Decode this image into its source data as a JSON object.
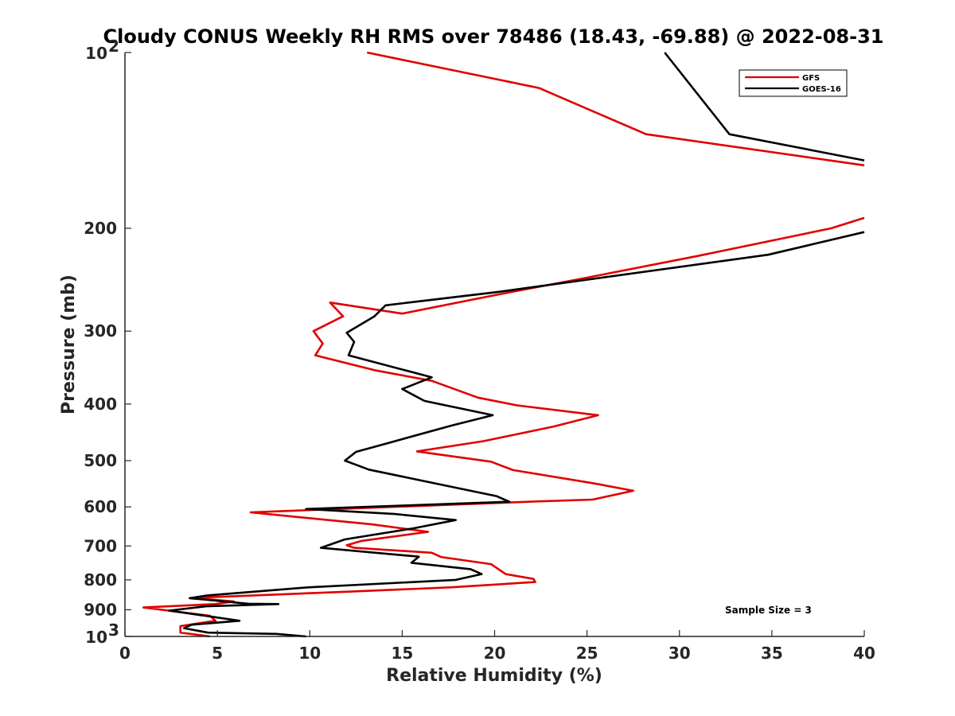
{
  "chart_data": {
    "type": "line",
    "title": "Cloudy CONUS Weekly RH RMS over 78486 (18.43, -69.88) @ 2022-08-31",
    "xlabel": "Relative Humidity (%)",
    "ylabel": "Pressure (mb)",
    "xlim": [
      0,
      40
    ],
    "ylim": [
      100,
      1000
    ],
    "y_scale": "log",
    "y_reversed": true,
    "grid": false,
    "legend_position": "top-right",
    "annotation": "Sample Size = 3",
    "x_ticks": [
      0,
      5,
      10,
      15,
      20,
      25,
      30,
      35,
      40
    ],
    "y_ticks": [
      {
        "value": 100,
        "base": "10",
        "exp": "2"
      },
      {
        "value": 200,
        "label": "200"
      },
      {
        "value": 300,
        "label": "300"
      },
      {
        "value": 400,
        "label": "400"
      },
      {
        "value": 500,
        "label": "500"
      },
      {
        "value": 600,
        "label": "600"
      },
      {
        "value": 700,
        "label": "700"
      },
      {
        "value": 800,
        "label": "800"
      },
      {
        "value": 900,
        "label": "900"
      },
      {
        "value": 1000,
        "base": "10",
        "exp": "3"
      }
    ],
    "series": [
      {
        "name": "GFS",
        "color": "#e00000",
        "segments": [
          [
            [
              13.1,
              100
            ],
            [
              22.4,
              115
            ],
            [
              28.2,
              138
            ],
            [
              40,
              156
            ]
          ],
          [
            [
              40,
              192
            ],
            [
              38.2,
              200
            ],
            [
              31,
              223
            ],
            [
              25,
              243
            ],
            [
              20.1,
              260
            ],
            [
              15,
              280
            ],
            [
              11.1,
              268
            ],
            [
              11.8,
              283
            ],
            [
              10.2,
              300
            ],
            [
              10.7,
              315
            ],
            [
              10.3,
              330
            ],
            [
              13.5,
              350
            ],
            [
              16.6,
              365
            ],
            [
              19.1,
              390
            ],
            [
              21.2,
              402
            ],
            [
              25.6,
              418
            ],
            [
              23.2,
              437
            ],
            [
              19.4,
              463
            ],
            [
              15.8,
              482
            ],
            [
              19.8,
              502
            ],
            [
              21,
              519
            ],
            [
              25.4,
              547
            ],
            [
              27.5,
              563
            ],
            [
              25.3,
              583
            ],
            [
              22.4,
              587
            ],
            [
              6.8,
              613
            ],
            [
              13.4,
              643
            ],
            [
              16.4,
              662
            ],
            [
              12.8,
              686
            ],
            [
              12,
              698
            ],
            [
              12.4,
              705
            ],
            [
              16.6,
              719
            ],
            [
              17.1,
              731
            ],
            [
              19.8,
              752
            ],
            [
              20.6,
              782
            ],
            [
              22.1,
              797
            ],
            [
              22.2,
              807
            ],
            [
              17.6,
              824
            ],
            [
              12.1,
              838
            ],
            [
              3.6,
              859
            ],
            [
              5.9,
              871
            ],
            [
              4.9,
              880
            ],
            [
              1,
              892
            ],
            [
              4.6,
              922
            ],
            [
              4.9,
              940
            ],
            [
              3,
              960
            ],
            [
              3,
              985
            ],
            [
              4.6,
              1000
            ]
          ]
        ]
      },
      {
        "name": "GOES-16",
        "color": "#000000",
        "segments": [
          [
            [
              29.2,
              100
            ],
            [
              32.7,
              138
            ],
            [
              40,
              153
            ]
          ],
          [
            [
              40,
              203
            ],
            [
              34.8,
              222
            ],
            [
              20.2,
              257
            ],
            [
              14.1,
              271
            ],
            [
              13.5,
              283
            ],
            [
              12,
              302
            ],
            [
              12.4,
              313
            ],
            [
              12.1,
              330
            ],
            [
              16.6,
              360
            ],
            [
              15,
              377
            ],
            [
              16.2,
              395
            ],
            [
              19.9,
              418
            ],
            [
              17.7,
              435
            ],
            [
              14.5,
              464
            ],
            [
              12.5,
              483
            ],
            [
              11.9,
              500
            ],
            [
              13.2,
              518
            ],
            [
              20.1,
              575
            ],
            [
              20.8,
              588
            ],
            [
              9.8,
              605
            ],
            [
              14.6,
              617
            ],
            [
              17.9,
              632
            ],
            [
              15.6,
              653
            ],
            [
              11.9,
              682
            ],
            [
              10.6,
              705
            ],
            [
              15.9,
              730
            ],
            [
              15.5,
              748
            ],
            [
              18.7,
              767
            ],
            [
              19.3,
              782
            ],
            [
              17.9,
              800
            ],
            [
              9.9,
              824
            ],
            [
              4.4,
              851
            ],
            [
              3.5,
              860
            ],
            [
              6.7,
              879
            ],
            [
              8.3,
              880
            ],
            [
              4.4,
              888
            ],
            [
              2.4,
              903
            ],
            [
              6.2,
              940
            ],
            [
              3.6,
              955
            ],
            [
              3.2,
              968
            ],
            [
              4.5,
              985
            ],
            [
              8.2,
              990
            ],
            [
              9.8,
              1000
            ]
          ]
        ]
      }
    ]
  }
}
